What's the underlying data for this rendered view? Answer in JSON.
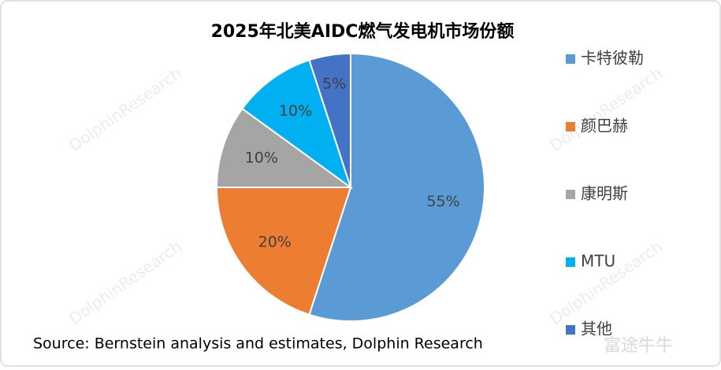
{
  "chart_data": {
    "type": "pie",
    "title": "2025年北美AIDC燃气发电机市场份额",
    "categories": [
      "卡特彼勒",
      "颜巴赫",
      "康明斯",
      "MTU",
      "其他"
    ],
    "values": [
      55,
      20,
      10,
      10,
      5
    ],
    "value_labels": [
      "55%",
      "20%",
      "10%",
      "10%",
      "5%"
    ],
    "colors": [
      "#5b9bd5",
      "#ed7d31",
      "#a5a5a5",
      "#00b0f0",
      "#4472c4"
    ],
    "legend": "right",
    "source": "Source: Bernstein analysis and estimates, Dolphin Research",
    "watermark": "DolphinResearch",
    "logo": "富途牛牛"
  }
}
